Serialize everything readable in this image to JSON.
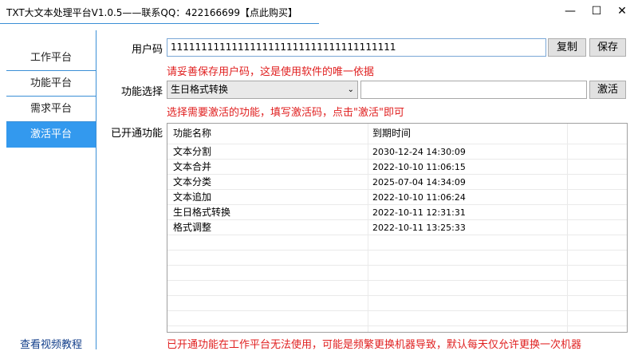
{
  "window": {
    "title": "TXT大文本处理平台V1.0.5——联系QQ：422166699【点此购买】",
    "minimize": "—",
    "maximize": "☐",
    "close": "✕"
  },
  "sidebar": {
    "items": [
      {
        "label": "工作平台"
      },
      {
        "label": "功能平台"
      },
      {
        "label": "需求平台"
      },
      {
        "label": "激活平台",
        "active": true
      }
    ],
    "tutorial_link": "查看视频教程",
    "accent": "#3399ee"
  },
  "form": {
    "user_code_label": "用户码",
    "user_code_value": "1111111111111111111111111111111111111",
    "copy_button": "复制",
    "save_button": "保存",
    "user_code_hint": "请妥善保存用户码，这是使用软件的唯一依据",
    "feature_label": "功能选择",
    "feature_selected": "生日格式转换",
    "activation_code_value": "",
    "activate_button": "激活",
    "feature_hint": "选择需要激活的功能，填写激活码，点击\"激活\"即可",
    "enabled_label": "已开通功能"
  },
  "table": {
    "columns": [
      "功能名称",
      "到期时间"
    ],
    "rows": [
      {
        "name": "文本分割",
        "expires": "2030-12-24 14:30:09"
      },
      {
        "name": "文本合并",
        "expires": "2022-10-10 11:06:15"
      },
      {
        "name": "文本分类",
        "expires": "2025-07-04 14:34:09"
      },
      {
        "name": "文本追加",
        "expires": "2022-10-10 11:06:24"
      },
      {
        "name": "生日格式转换",
        "expires": "2022-10-11 12:31:31"
      },
      {
        "name": "格式调整",
        "expires": "2022-10-11 13:25:33"
      }
    ]
  },
  "footer_warning": "已开通功能在工作平台无法使用，可能是频繁更换机器导致，默认每天仅允许更换一次机器"
}
